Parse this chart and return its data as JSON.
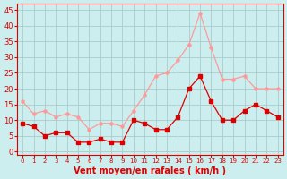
{
  "hours": [
    0,
    1,
    2,
    3,
    4,
    5,
    6,
    7,
    8,
    9,
    10,
    11,
    12,
    13,
    14,
    15,
    16,
    17,
    18,
    19,
    20,
    21,
    22,
    23
  ],
  "wind_avg": [
    9,
    8,
    5,
    6,
    6,
    3,
    3,
    4,
    3,
    3,
    10,
    9,
    7,
    7,
    11,
    20,
    24,
    16,
    10,
    10,
    13,
    15,
    13,
    11
  ],
  "wind_gust": [
    16,
    12,
    13,
    11,
    12,
    11,
    7,
    9,
    9,
    8,
    13,
    18,
    24,
    25,
    29,
    34,
    44,
    33,
    23,
    23,
    24,
    20,
    20,
    20
  ],
  "color_avg": "#dd0000",
  "color_gust": "#ff9999",
  "bg_color": "#cceeee",
  "grid_color": "#aacccc",
  "xlabel": "Vent moyen/en rafales ( km/h )",
  "ylabel_ticks": [
    0,
    5,
    10,
    15,
    20,
    25,
    30,
    35,
    40,
    45
  ],
  "ylim": [
    -1,
    47
  ],
  "xlim": [
    -0.5,
    23.5
  ],
  "xlabel_color": "#dd0000",
  "tick_color": "#dd0000"
}
